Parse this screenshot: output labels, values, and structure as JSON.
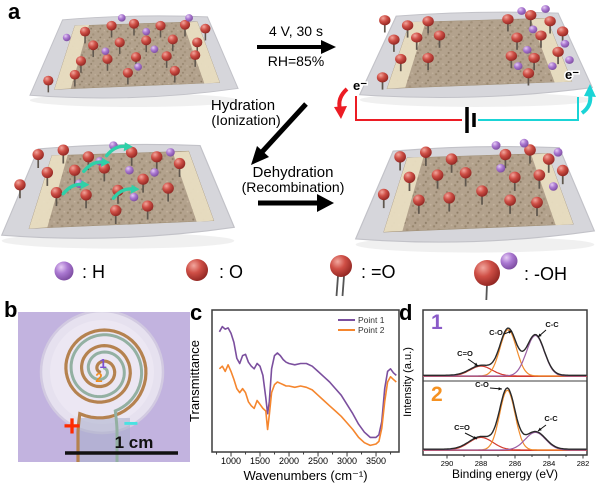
{
  "figure": {
    "panels": {
      "a": "a",
      "b": "b",
      "c": "c",
      "d": "d"
    }
  },
  "panel_a": {
    "voltage_top": "4 V,  30 s",
    "humidity": "RH=85%",
    "hydration_line1": "Hydration",
    "hydration_line2": "(Ionization)",
    "dehydration_line1": "Dehydration",
    "dehydration_line2": "(Recombination)",
    "electron_label": "e⁻",
    "legend": [
      {
        "symbol": "purple-sphere",
        "label": ":  H"
      },
      {
        "symbol": "red-sphere",
        "label": ":  O"
      },
      {
        "symbol": "red-sphere-double-bond",
        "label": ":  =O"
      },
      {
        "symbol": "red-purple-sphere-single-bond",
        "label": ":  -OH"
      }
    ]
  },
  "panel_b": {
    "point1_label": "1",
    "point2_label": "2",
    "plus_label": "+",
    "minus_label": "−",
    "scale_label": "1 cm"
  },
  "colors": {
    "sphere_red": "#cb4f46",
    "sphere_purple": "#a977cf",
    "membrane": "#b3a28d",
    "substrate": "#d6d6db",
    "electrode_strip": "#e9dec2",
    "teal_arrow": "#2fd0a8",
    "circuit_red": "#ec1c24",
    "circuit_cyan": "#1ad4d6",
    "copper_electrode": "#b5824f",
    "teal_electrode": "#93b0a2",
    "photo_bg": "#c2b3df",
    "plus_red": "#ff2b00",
    "minus_cyan": "#49e2e2",
    "scalebar_black": "#111111"
  },
  "chart_data": [
    {
      "type": "line",
      "title": "",
      "xlabel": "Wavenumbers (cm⁻¹)",
      "ylabel": "Transmittance",
      "xlim": [
        672,
        3896
      ],
      "xticks": [
        1000,
        1500,
        2000,
        2500,
        3000,
        3500
      ],
      "grid": false,
      "legend_position": "top-right",
      "x": [
        800,
        850,
        900,
        950,
        1000,
        1050,
        1100,
        1150,
        1200,
        1250,
        1300,
        1350,
        1400,
        1450,
        1500,
        1550,
        1600,
        1630,
        1660,
        1700,
        1750,
        1800,
        1850,
        1900,
        1950,
        2000,
        2100,
        2200,
        2300,
        2400,
        2500,
        2600,
        2700,
        2800,
        2900,
        3000,
        3100,
        3200,
        3300,
        3400,
        3500,
        3550,
        3600,
        3650,
        3700,
        3750,
        3800,
        3850
      ],
      "series": [
        {
          "name": "Point 1",
          "color": "#7b4f9e",
          "y": [
            0.88,
            0.92,
            0.9,
            0.91,
            0.87,
            0.8,
            0.68,
            0.64,
            0.7,
            0.71,
            0.65,
            0.62,
            0.6,
            0.64,
            0.62,
            0.55,
            0.38,
            0.26,
            0.35,
            0.6,
            0.7,
            0.72,
            0.7,
            0.67,
            0.65,
            0.64,
            0.63,
            0.64,
            0.64,
            0.62,
            0.58,
            0.54,
            0.5,
            0.45,
            0.4,
            0.33,
            0.26,
            0.18,
            0.12,
            0.08,
            0.08,
            0.1,
            0.2,
            0.45,
            0.58,
            0.6,
            0.57,
            0.55
          ]
        },
        {
          "name": "Point 2",
          "color": "#f5862e",
          "y": [
            0.6,
            0.62,
            0.58,
            0.63,
            0.58,
            0.52,
            0.45,
            0.42,
            0.45,
            0.42,
            0.35,
            0.32,
            0.3,
            0.36,
            0.33,
            0.3,
            0.28,
            0.14,
            0.25,
            0.42,
            0.48,
            0.5,
            0.49,
            0.48,
            0.47,
            0.47,
            0.46,
            0.47,
            0.46,
            0.44,
            0.4,
            0.36,
            0.32,
            0.28,
            0.24,
            0.19,
            0.14,
            0.08,
            0.04,
            0.02,
            0.03,
            0.05,
            0.15,
            0.35,
            0.5,
            0.54,
            0.52,
            0.5
          ]
        }
      ]
    },
    {
      "type": "line",
      "title": "",
      "xlabel": "Binding energy (eV)",
      "ylabel": "Intensity (a.u.)",
      "xlim": [
        291.4,
        281.8
      ],
      "x_reversed": true,
      "xticks": [
        290,
        288,
        286,
        284,
        282
      ],
      "panels": [
        {
          "label": "1",
          "label_color": "#8a5bc8",
          "peaks": [
            {
              "name": "C=O",
              "center": 288.0,
              "amplitude": 0.17,
              "width": 0.65,
              "color": "#d23b30"
            },
            {
              "name": "C-O",
              "center": 286.4,
              "amplitude": 0.8,
              "width": 0.48,
              "color": "#f08c2e"
            },
            {
              "name": "C-C",
              "center": 284.8,
              "amplitude": 0.7,
              "width": 0.52,
              "color": "#9b5fa5"
            }
          ]
        },
        {
          "label": "2",
          "label_color": "#f59120",
          "peaks": [
            {
              "name": "C=O",
              "center": 288.0,
              "amplitude": 0.2,
              "width": 0.7,
              "color": "#d23b30"
            },
            {
              "name": "C-O",
              "center": 286.45,
              "amplitude": 0.95,
              "width": 0.45,
              "color": "#f08c2e"
            },
            {
              "name": "C-C",
              "center": 284.8,
              "amplitude": 0.28,
              "width": 0.6,
              "color": "#9b5fa5"
            }
          ]
        }
      ]
    }
  ]
}
